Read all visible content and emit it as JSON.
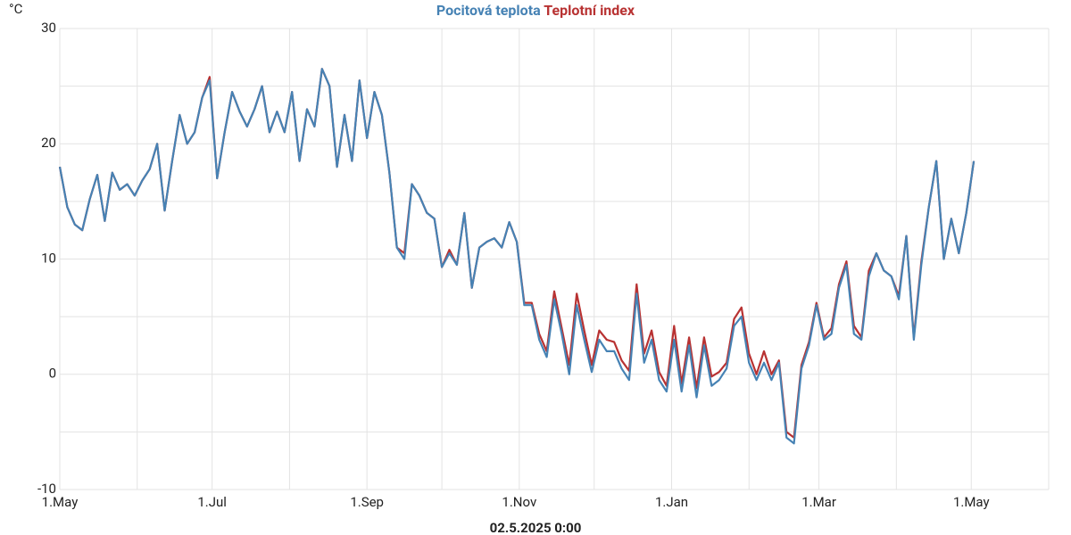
{
  "chart_data": {
    "type": "line",
    "y_unit": "°C",
    "x_label": "02.5.2025 0:00",
    "xlim": [
      0,
      396
    ],
    "ylim": [
      -10,
      30
    ],
    "xticks": [
      {
        "value": 0,
        "label": "1.May"
      },
      {
        "value": 61,
        "label": "1.Jul"
      },
      {
        "value": 123,
        "label": "1.Sep"
      },
      {
        "value": 184,
        "label": "1.Nov"
      },
      {
        "value": 245,
        "label": "1.Jan"
      },
      {
        "value": 304,
        "label": "1.Mar"
      },
      {
        "value": 365,
        "label": "1.May"
      }
    ],
    "xminor": [
      31,
      92,
      153,
      214,
      276,
      335,
      396
    ],
    "yticks": [
      -10,
      0,
      10,
      20,
      30
    ],
    "yminor": [
      -5,
      5,
      15,
      25
    ],
    "grid": true,
    "x": [
      0,
      3,
      6,
      9,
      12,
      15,
      18,
      21,
      24,
      27,
      30,
      33,
      36,
      39,
      42,
      45,
      48,
      51,
      54,
      57,
      60,
      63,
      66,
      69,
      72,
      75,
      78,
      81,
      84,
      87,
      90,
      93,
      96,
      99,
      102,
      105,
      108,
      111,
      114,
      117,
      120,
      123,
      126,
      129,
      132,
      135,
      138,
      141,
      144,
      147,
      150,
      153,
      156,
      159,
      162,
      165,
      168,
      171,
      174,
      177,
      180,
      183,
      186,
      189,
      192,
      195,
      198,
      201,
      204,
      207,
      210,
      213,
      216,
      219,
      222,
      225,
      228,
      231,
      234,
      237,
      240,
      243,
      246,
      249,
      252,
      255,
      258,
      261,
      264,
      267,
      270,
      273,
      276,
      279,
      282,
      285,
      288,
      291,
      294,
      297,
      300,
      303,
      306,
      309,
      312,
      315,
      318,
      321,
      324,
      327,
      330,
      333,
      336,
      339,
      342,
      345,
      348,
      351,
      354,
      357,
      360,
      363,
      366
    ],
    "series": [
      {
        "name": "Teplotní index",
        "color": "#b83232",
        "values": [
          18,
          14.5,
          13,
          12.5,
          15.2,
          17.3,
          13.3,
          17.5,
          16,
          16.5,
          15.5,
          16.8,
          17.8,
          20,
          14.2,
          18.5,
          22.5,
          20,
          21,
          24,
          25.8,
          17,
          21,
          24.5,
          22.8,
          21.5,
          23,
          25,
          21,
          22.8,
          21,
          24.5,
          18.5,
          23,
          21.5,
          26.5,
          25,
          18,
          22.5,
          18.5,
          25.5,
          20.5,
          24.5,
          22.5,
          17.5,
          11,
          10.5,
          16.5,
          15.5,
          14,
          13.5,
          9.3,
          10.8,
          9.5,
          14,
          7.5,
          11,
          11.5,
          11.8,
          11,
          13.2,
          11.5,
          6.2,
          6.2,
          3.5,
          2,
          7.2,
          4,
          0.8,
          7,
          3.8,
          0.8,
          3.8,
          3,
          2.8,
          1.2,
          0.3,
          7.8,
          1.8,
          3.8,
          0.2,
          -1,
          4.2,
          -0.8,
          3.2,
          -1.2,
          3.2,
          -0.2,
          0.2,
          1,
          4.8,
          5.8,
          1.8,
          0,
          2,
          0,
          1.2,
          -5,
          -5.5,
          0.8,
          2.8,
          6.2,
          3.2,
          4,
          7.8,
          9.8,
          4.2,
          3.2,
          9,
          10.5,
          9,
          8.5,
          6.8,
          12,
          3.2,
          9.8,
          14.5,
          18.5,
          10,
          13.5,
          10.5,
          14,
          18.5
        ]
      },
      {
        "name": "Pocitová teplota",
        "color": "#4682b4",
        "values": [
          18,
          14.5,
          13,
          12.5,
          15.2,
          17.3,
          13.3,
          17.5,
          16,
          16.5,
          15.5,
          16.8,
          17.8,
          20,
          14.2,
          18.5,
          22.5,
          20,
          21,
          24,
          25.5,
          17,
          21,
          24.5,
          22.8,
          21.5,
          23,
          25,
          21,
          22.8,
          21,
          24.5,
          18.5,
          23,
          21.5,
          26.5,
          25,
          18,
          22.5,
          18.5,
          25.5,
          20.5,
          24.5,
          22.5,
          17.5,
          11,
          10,
          16.5,
          15.5,
          14,
          13.5,
          9.3,
          10.5,
          9.5,
          14,
          7.5,
          11,
          11.5,
          11.8,
          11,
          13.2,
          11.5,
          6,
          6,
          3,
          1.5,
          6.5,
          3.5,
          0,
          6,
          3,
          0.2,
          3,
          2,
          2,
          0.5,
          -0.5,
          7,
          1,
          3,
          -0.5,
          -1.5,
          3,
          -1.5,
          2.5,
          -2,
          2.5,
          -1,
          -0.5,
          0.5,
          4.2,
          5,
          1,
          -0.5,
          1,
          -0.5,
          1,
          -5.5,
          -6,
          0.5,
          2.5,
          6,
          3,
          3.5,
          7.5,
          9.5,
          3.5,
          3,
          8.5,
          10.5,
          9,
          8.5,
          6.5,
          12,
          3,
          9.5,
          14.5,
          18.5,
          10,
          13.5,
          10.5,
          14,
          18.5
        ]
      }
    ]
  }
}
